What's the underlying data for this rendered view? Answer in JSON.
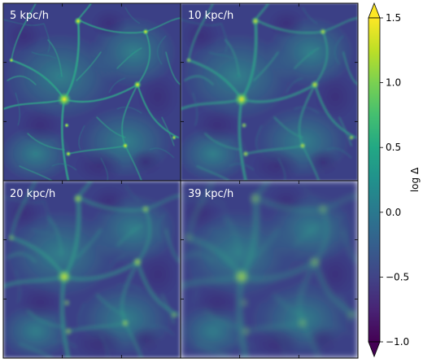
{
  "panels": [
    {
      "label": "5 kpc/h"
    },
    {
      "label": "10 kpc/h"
    },
    {
      "label": "20 kpc/h"
    },
    {
      "label": "39 kpc/h"
    }
  ],
  "colorbar": {
    "label": "log Δ",
    "colormap": "viridis",
    "range": [
      -1.0,
      1.5
    ],
    "extend": "both",
    "ticks": [
      "1.5",
      "1.0",
      "0.5",
      "0.0",
      "−0.5",
      "−1.0"
    ],
    "tick_values": [
      1.5,
      1.0,
      0.5,
      0.0,
      -0.5,
      -1.0
    ]
  },
  "colors": {
    "void": "#3b3f86",
    "wall": "#23898e",
    "filament": "#3fbc73",
    "node": "#fde725",
    "frame": "#000000"
  }
}
